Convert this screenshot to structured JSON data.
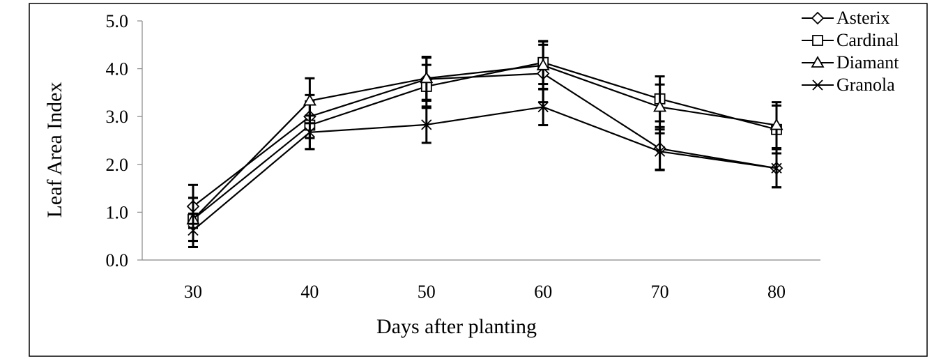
{
  "chart_data": {
    "type": "line",
    "title": "",
    "xlabel": "Days after planting",
    "ylabel": "Leaf Area Index",
    "x": [
      30,
      40,
      50,
      60,
      70,
      80
    ],
    "x_tick_labels": [
      "30",
      "40",
      "50",
      "60",
      "70",
      "80"
    ],
    "ylim": [
      0,
      5
    ],
    "y_ticks": [
      0,
      1,
      2,
      3,
      4,
      5
    ],
    "y_tick_labels": [
      "0.0",
      "1.0",
      "2.0",
      "3.0",
      "4.0",
      "5.0"
    ],
    "grid": false,
    "legend_position": "top-right",
    "line_color": "#000000",
    "series": [
      {
        "name": "Asterix",
        "marker": "diamond",
        "values": [
          1.12,
          3.0,
          3.78,
          3.9,
          2.33,
          1.92
        ],
        "error": [
          0.45,
          0.45,
          0.45,
          0.6,
          0.45,
          0.4
        ]
      },
      {
        "name": "Cardinal",
        "marker": "square",
        "values": [
          0.85,
          2.82,
          3.63,
          4.13,
          3.37,
          2.73
        ],
        "error": [
          0.45,
          0.5,
          0.45,
          0.45,
          0.47,
          0.5
        ]
      },
      {
        "name": "Diamant",
        "marker": "triangle",
        "values": [
          0.85,
          3.33,
          3.8,
          4.07,
          3.2,
          2.82
        ],
        "error": [
          0.45,
          0.47,
          0.45,
          0.5,
          0.47,
          0.48
        ]
      },
      {
        "name": "Granola",
        "marker": "x",
        "values": [
          0.62,
          2.67,
          2.83,
          3.2,
          2.27,
          1.92
        ],
        "error": [
          0.35,
          0.35,
          0.38,
          0.38,
          0.38,
          0.4
        ]
      }
    ]
  }
}
